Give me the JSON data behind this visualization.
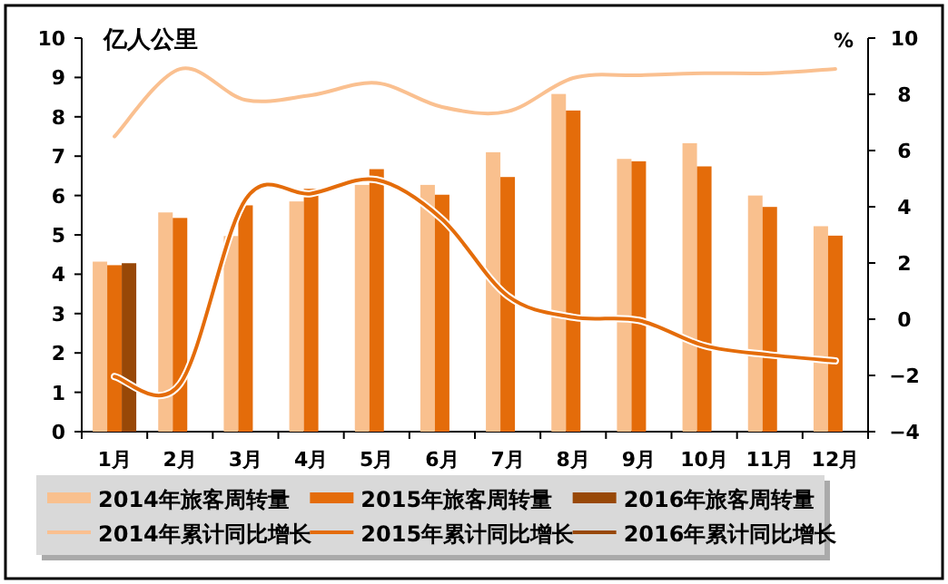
{
  "chart_data": {
    "type": "bar",
    "ylabel": "亿人公里",
    "y2label": "%",
    "categories": [
      "1月",
      "2月",
      "3月",
      "4月",
      "5月",
      "6月",
      "7月",
      "8月",
      "9月",
      "10月",
      "11月",
      "12月"
    ],
    "series": [
      {
        "name": "2014年旅客周转量",
        "color": "#f9c08e",
        "values": [
          4.32,
          5.57,
          4.97,
          5.85,
          6.27,
          6.27,
          7.1,
          8.58,
          6.93,
          7.33,
          6.0,
          5.22
        ]
      },
      {
        "name": "2015年旅客周转量",
        "color": "#e46c0a",
        "values": [
          4.23,
          5.43,
          5.75,
          6.17,
          6.67,
          6.02,
          6.47,
          8.16,
          6.87,
          6.74,
          5.71,
          4.98
        ]
      },
      {
        "name": "2016年旅客周转量",
        "color": "#984807",
        "values": [
          4.28,
          null,
          null,
          null,
          null,
          null,
          null,
          null,
          null,
          null,
          null,
          null
        ]
      },
      {
        "type": "line",
        "axis": "y2",
        "name": "2014年累计同比增长",
        "color": "#fac090",
        "values": [
          6.5,
          8.9,
          7.8,
          7.97,
          8.4,
          7.55,
          7.39,
          8.58,
          8.68,
          8.75,
          8.75,
          8.9
        ]
      },
      {
        "type": "line",
        "axis": "y2",
        "name": "2015年累计同比增长",
        "color": "#e46c0a",
        "values": [
          -2.04,
          -2.3,
          4.26,
          4.47,
          4.96,
          3.56,
          0.83,
          0.07,
          -0.04,
          -0.94,
          -1.27,
          -1.48
        ]
      },
      {
        "type": "line",
        "axis": "y2",
        "name": "2016年累计同比增长",
        "color": "#984807",
        "values": [
          null,
          null,
          null,
          null,
          null,
          null,
          null,
          null,
          null,
          null,
          null,
          null
        ]
      }
    ],
    "ylim": [
      0,
      10
    ],
    "yticks": [
      0,
      1,
      2,
      3,
      4,
      5,
      6,
      7,
      8,
      9,
      10
    ],
    "y2lim": [
      -4,
      10
    ],
    "y2ticks": [
      -4,
      -2,
      0,
      2,
      4,
      6,
      8,
      10
    ],
    "legend": "bottom"
  }
}
